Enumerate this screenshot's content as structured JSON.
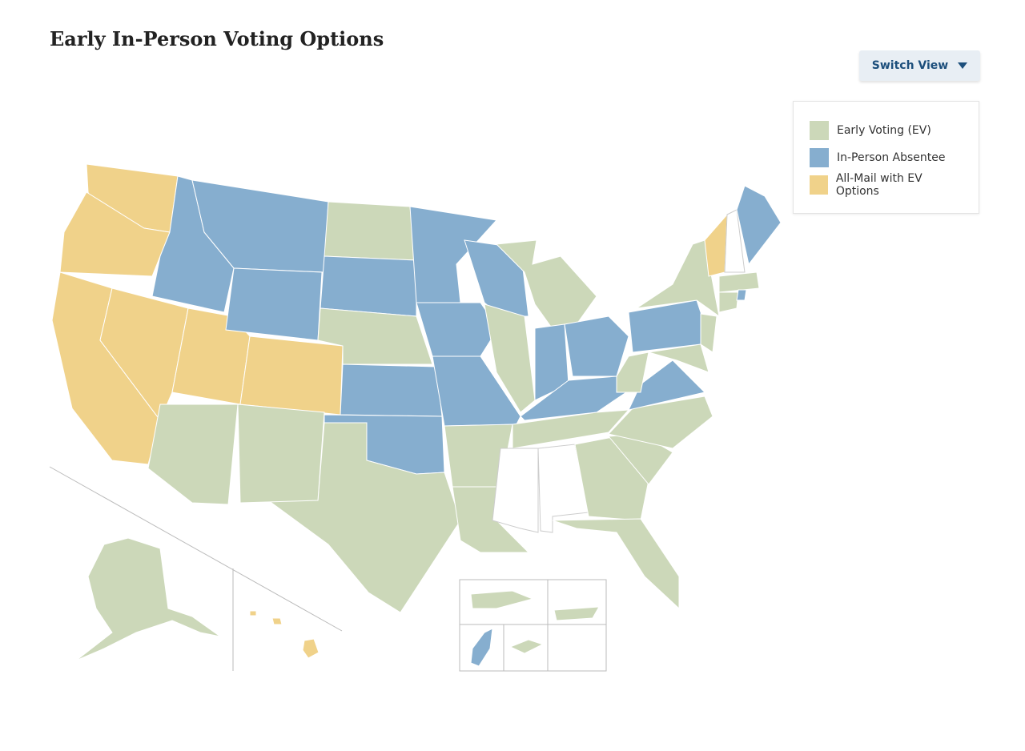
{
  "header": {
    "title": "Early In-Person Voting Options",
    "button": "Switch View"
  },
  "legend": {
    "items": [
      {
        "label": "Early Voting (EV)",
        "color": "#ccd8b9"
      },
      {
        "label": "In-Person Absentee",
        "color": "#86aecf"
      },
      {
        "label": "All-Mail with EV Options",
        "color": "#f0d28a"
      }
    ]
  }
}
